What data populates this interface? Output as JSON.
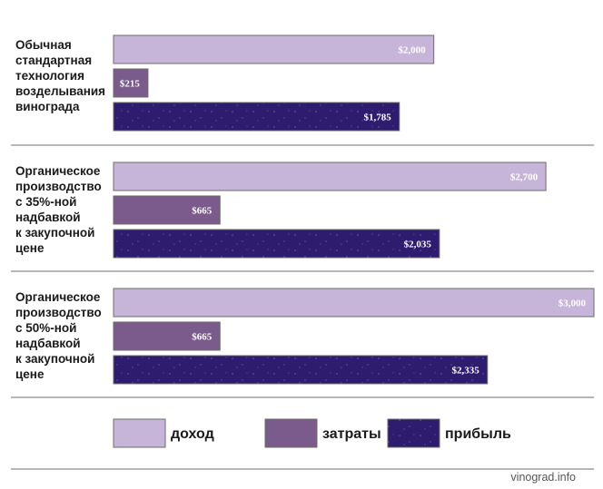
{
  "chart_data": {
    "type": "bar",
    "orientation": "horizontal",
    "categories": [
      [
        "Обычная",
        "стандартная",
        "технология",
        "возделывания",
        "винограда"
      ],
      [
        "Органическое",
        "производство",
        "с 35%-ной",
        "надбавкой",
        "к закупочной",
        "цене"
      ],
      [
        "Органическое",
        "производство",
        "с 50%-ной",
        "надбавкой",
        "к закупочной",
        "цене"
      ]
    ],
    "series": [
      {
        "name": "доход",
        "color": "#c7b5d9",
        "values": [
          2000,
          2700,
          3000
        ],
        "labels": [
          "$2,000",
          "$2,700",
          "$3,000"
        ]
      },
      {
        "name": "затраты",
        "color": "#7a5b8b",
        "values": [
          215,
          665,
          665
        ],
        "labels": [
          "$215",
          "$665",
          "$665"
        ]
      },
      {
        "name": "прибыль",
        "color": "#2e1d6f",
        "values": [
          1785,
          2035,
          2335
        ],
        "labels": [
          "$1,785",
          "$2,035",
          "$2,335"
        ]
      }
    ],
    "xlim": [
      0,
      3000
    ],
    "legend": "bottom",
    "grid": false
  },
  "watermark": "vinograd.info"
}
